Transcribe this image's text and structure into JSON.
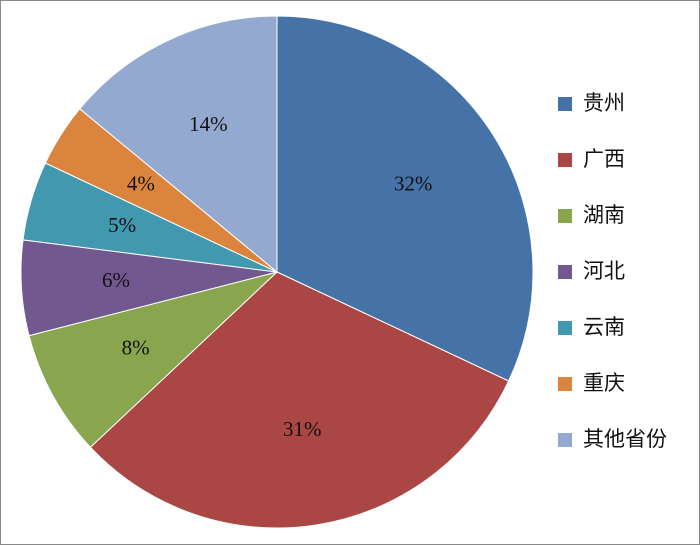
{
  "chart_data": {
    "type": "pie",
    "categories": [
      "贵州",
      "广西",
      "湖南",
      "河北",
      "云南",
      "重庆",
      "其他省份"
    ],
    "values": [
      32,
      31,
      8,
      6,
      5,
      4,
      14
    ],
    "value_labels": [
      "32%",
      "31%",
      "8%",
      "6%",
      "5%",
      "4%",
      "14%"
    ],
    "colors": [
      "#4572a7",
      "#aa4643",
      "#89a54e",
      "#71588f",
      "#4198af",
      "#db843d",
      "#93a9cf"
    ],
    "legend": "right"
  }
}
